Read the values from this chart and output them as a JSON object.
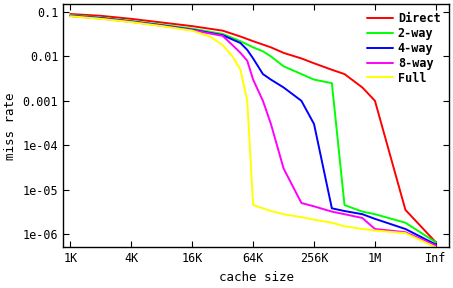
{
  "title": "",
  "xlabel": "cache size",
  "ylabel": "miss rate",
  "x_labels": [
    "1K",
    "4K",
    "16K",
    "64K",
    "256K",
    "1M",
    "Inf"
  ],
  "x_positions": [
    1,
    4,
    16,
    64,
    256,
    1024,
    4096
  ],
  "series": {
    "Direct": {
      "color": "#ff0000",
      "x": [
        1,
        2,
        4,
        8,
        16,
        32,
        48,
        64,
        96,
        128,
        192,
        256,
        384,
        512,
        768,
        1024,
        2048,
        4096
      ],
      "y": [
        0.09,
        0.082,
        0.07,
        0.058,
        0.048,
        0.038,
        0.028,
        0.022,
        0.016,
        0.012,
        0.009,
        0.007,
        0.005,
        0.004,
        0.002,
        0.001,
        3.5e-06,
        6.5e-07
      ]
    },
    "2-way": {
      "color": "#00ff00",
      "x": [
        1,
        2,
        4,
        8,
        16,
        32,
        48,
        64,
        80,
        96,
        128,
        192,
        256,
        384,
        512,
        768,
        1024,
        2048,
        4096
      ],
      "y": [
        0.085,
        0.075,
        0.063,
        0.052,
        0.042,
        0.032,
        0.022,
        0.016,
        0.013,
        0.01,
        0.006,
        0.004,
        0.003,
        0.0025,
        4.5e-06,
        3.2e-06,
        2.8e-06,
        1.8e-06,
        6.5e-07
      ]
    },
    "4-way": {
      "color": "#0000ff",
      "x": [
        1,
        2,
        4,
        8,
        16,
        32,
        48,
        56,
        64,
        80,
        96,
        128,
        192,
        256,
        384,
        512,
        768,
        1024,
        2048,
        4096
      ],
      "y": [
        0.082,
        0.073,
        0.061,
        0.05,
        0.04,
        0.03,
        0.02,
        0.014,
        0.009,
        0.004,
        0.003,
        0.002,
        0.001,
        0.0003,
        3.8e-06,
        3.3e-06,
        2.8e-06,
        2.2e-06,
        1.3e-06,
        5.8e-07
      ]
    },
    "8-way": {
      "color": "#ff00ff",
      "x": [
        1,
        2,
        4,
        8,
        16,
        32,
        40,
        48,
        56,
        64,
        80,
        96,
        128,
        192,
        256,
        384,
        512,
        768,
        1024,
        2048,
        4096
      ],
      "y": [
        0.081,
        0.071,
        0.06,
        0.049,
        0.039,
        0.029,
        0.018,
        0.012,
        0.008,
        0.003,
        0.001,
        0.0003,
        3e-05,
        5e-06,
        4.2e-06,
        3.2e-06,
        2.8e-06,
        2.3e-06,
        1.3e-06,
        1.1e-06,
        5.5e-07
      ]
    },
    "Full": {
      "color": "#ffff00",
      "x": [
        1,
        2,
        4,
        8,
        16,
        24,
        32,
        40,
        48,
        56,
        64,
        80,
        96,
        128,
        192,
        256,
        384,
        512,
        768,
        1024,
        2048,
        4096
      ],
      "y": [
        0.08,
        0.07,
        0.059,
        0.048,
        0.038,
        0.028,
        0.018,
        0.01,
        0.005,
        0.001,
        4.5e-06,
        3.8e-06,
        3.3e-06,
        2.8e-06,
        2.4e-06,
        2.1e-06,
        1.8e-06,
        1.5e-06,
        1.3e-06,
        1.2e-06,
        1.05e-06,
        5e-07
      ]
    }
  },
  "ylim": [
    5e-07,
    0.15
  ],
  "xlim_log": [
    0.85,
    5500
  ],
  "background_color": "#ffffff",
  "legend_order": [
    "Direct",
    "2-way",
    "4-way",
    "8-way",
    "Full"
  ],
  "legend_colors": [
    "#ff0000",
    "#00ff00",
    "#0000ff",
    "#ff00ff",
    "#ffff00"
  ]
}
